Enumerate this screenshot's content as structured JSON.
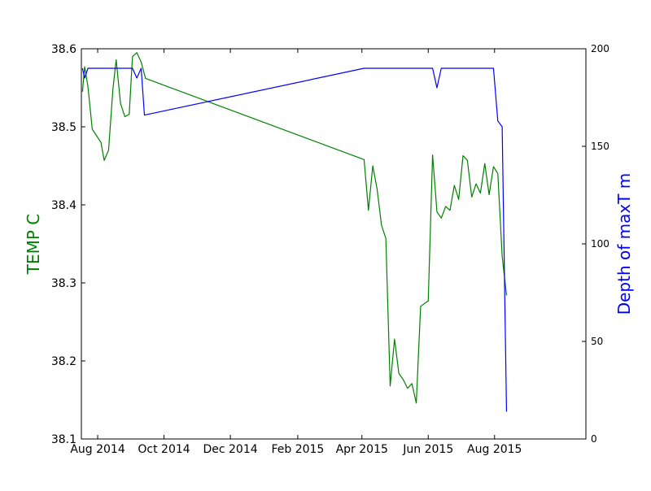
{
  "chart_data": {
    "type": "line",
    "title": "",
    "xlabel": "",
    "ylabel_left": "TEMP C",
    "ylabel_right": "Depth of maxT m",
    "x_ticks": [
      "Aug 2014",
      "Oct 2014",
      "Dec 2014",
      "Feb 2015",
      "Apr 2015",
      "Jun 2015",
      "Aug 2015"
    ],
    "y_left_ticks": [
      "38.1",
      "38.2",
      "38.3",
      "38.4",
      "38.5",
      "38.6"
    ],
    "y_right_ticks": [
      "0",
      "50",
      "100",
      "150",
      "200"
    ],
    "xlim": [
      "2014-07-17",
      "2015-10-24"
    ],
    "ylim_left": [
      38.1,
      38.6
    ],
    "ylim_right": [
      0,
      200
    ],
    "grid": false,
    "colors": {
      "temp": "#008000",
      "depth": "#0000ff"
    },
    "series": [
      {
        "axis": "left",
        "color": "#008000",
        "points": [
          [
            "2014-07-18",
            38.545
          ],
          [
            "2014-07-20",
            38.577
          ],
          [
            "2014-07-23",
            38.552
          ],
          [
            "2014-07-27",
            38.497
          ],
          [
            "2014-08-04",
            38.48
          ],
          [
            "2014-08-07",
            38.457
          ],
          [
            "2014-08-11",
            38.47
          ],
          [
            "2014-08-15",
            38.548
          ],
          [
            "2014-08-18",
            38.586
          ],
          [
            "2014-08-22",
            38.53
          ],
          [
            "2014-08-26",
            38.513
          ],
          [
            "2014-08-30",
            38.516
          ],
          [
            "2014-09-02",
            38.59
          ],
          [
            "2014-09-06",
            38.595
          ],
          [
            "2014-09-10",
            38.583
          ],
          [
            "2014-09-14",
            38.562
          ],
          [
            "2015-04-03",
            38.458
          ],
          [
            "2015-04-07",
            38.393
          ],
          [
            "2015-04-11",
            38.45
          ],
          [
            "2015-04-15",
            38.42
          ],
          [
            "2015-04-19",
            38.374
          ],
          [
            "2015-04-23",
            38.357
          ],
          [
            "2015-04-27",
            38.168
          ],
          [
            "2015-05-01",
            38.228
          ],
          [
            "2015-05-05",
            38.184
          ],
          [
            "2015-05-09",
            38.176
          ],
          [
            "2015-05-13",
            38.165
          ],
          [
            "2015-05-17",
            38.171
          ],
          [
            "2015-05-21",
            38.146
          ],
          [
            "2015-05-25",
            38.27
          ],
          [
            "2015-06-01",
            38.277
          ],
          [
            "2015-06-05",
            38.464
          ],
          [
            "2015-06-09",
            38.391
          ],
          [
            "2015-06-13",
            38.383
          ],
          [
            "2015-06-17",
            38.398
          ],
          [
            "2015-06-21",
            38.393
          ],
          [
            "2015-06-25",
            38.425
          ],
          [
            "2015-06-29",
            38.407
          ],
          [
            "2015-07-03",
            38.463
          ],
          [
            "2015-07-07",
            38.457
          ],
          [
            "2015-07-11",
            38.41
          ],
          [
            "2015-07-15",
            38.427
          ],
          [
            "2015-07-19",
            38.415
          ],
          [
            "2015-07-23",
            38.453
          ],
          [
            "2015-07-27",
            38.413
          ],
          [
            "2015-07-31",
            38.449
          ],
          [
            "2015-08-04",
            38.44
          ],
          [
            "2015-08-08",
            38.334
          ],
          [
            "2015-08-12",
            38.284
          ]
        ]
      },
      {
        "axis": "right",
        "color": "#0000ff",
        "points": [
          [
            "2014-07-18",
            190
          ],
          [
            "2014-07-20",
            185
          ],
          [
            "2014-07-23",
            190
          ],
          [
            "2014-09-02",
            190
          ],
          [
            "2014-09-06",
            185
          ],
          [
            "2014-09-10",
            190
          ],
          [
            "2014-09-13",
            166
          ],
          [
            "2015-04-03",
            190
          ],
          [
            "2015-06-05",
            190
          ],
          [
            "2015-06-09",
            180
          ],
          [
            "2015-06-13",
            190
          ],
          [
            "2015-07-31",
            190
          ],
          [
            "2015-08-04",
            163
          ],
          [
            "2015-08-08",
            160
          ],
          [
            "2015-08-12",
            14
          ]
        ]
      }
    ]
  }
}
